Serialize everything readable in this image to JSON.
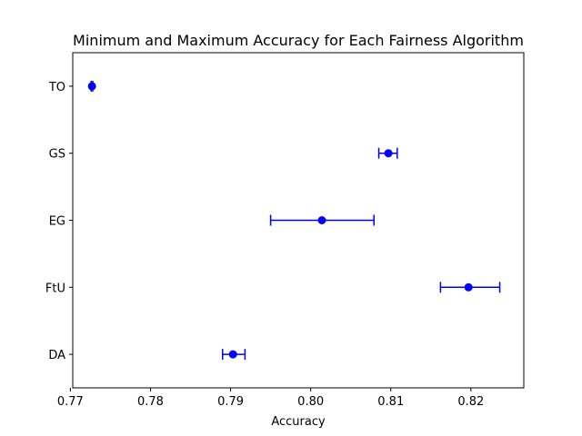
{
  "chart_data": {
    "type": "scatter",
    "title": "Minimum and Maximum Accuracy for Each Fairness Algorithm",
    "xlabel": "Accuracy",
    "ylabel": "",
    "xlim": [
      0.7703,
      0.8266
    ],
    "x_ticks": [
      0.77,
      0.78,
      0.79,
      0.8,
      0.81,
      0.82
    ],
    "x_tick_labels": [
      "0.77",
      "0.78",
      "0.79",
      "0.80",
      "0.81",
      "0.82"
    ],
    "categories": [
      "TO",
      "GS",
      "EG",
      "FtU",
      "DA"
    ],
    "series": [
      {
        "color": "#0000ff",
        "points": [
          {
            "category": "TO",
            "value": 0.7727,
            "min": 0.7726,
            "max": 0.7728
          },
          {
            "category": "GS",
            "value": 0.8097,
            "min": 0.8085,
            "max": 0.8108
          },
          {
            "category": "EG",
            "value": 0.8014,
            "min": 0.795,
            "max": 0.8079
          },
          {
            "category": "FtU",
            "value": 0.8197,
            "min": 0.8162,
            "max": 0.8236
          },
          {
            "category": "DA",
            "value": 0.7903,
            "min": 0.789,
            "max": 0.7918
          }
        ]
      }
    ],
    "grid": false,
    "legend": "none"
  }
}
